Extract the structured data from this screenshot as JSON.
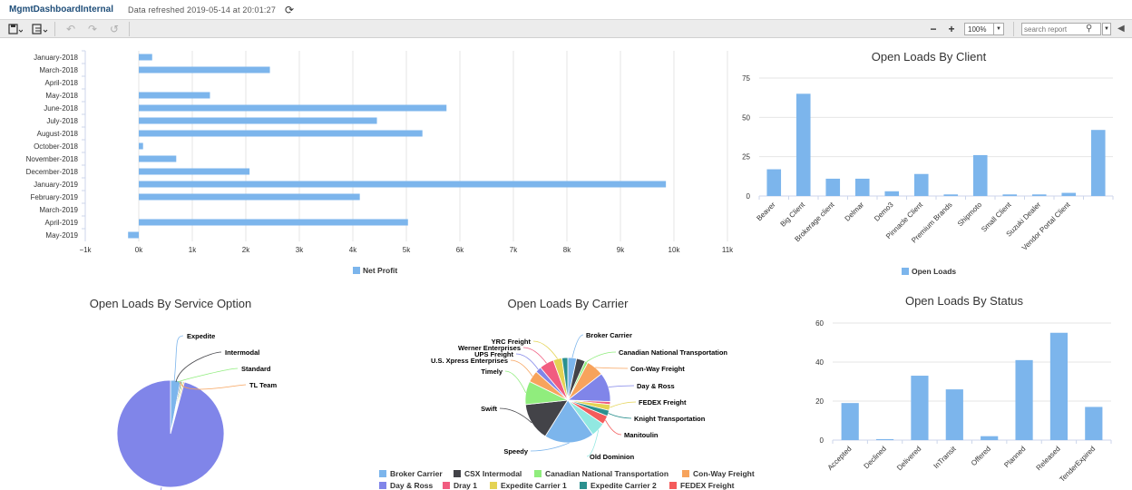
{
  "window": {
    "app_title": "MgmtDashboardInternal",
    "refreshed_text": "Data refreshed 2019-05-14 at 20:01:27"
  },
  "toolbar": {
    "zoom_value": "100%",
    "search_placeholder": "search report",
    "icons": [
      "save-icon",
      "export-icon",
      "undo-icon",
      "redo-icon",
      "refresh-icon",
      "zoom-out-icon",
      "zoom-in-icon",
      "search-icon",
      "collapse-icon"
    ]
  },
  "colors": {
    "bar": "#7cb5ec",
    "pie_main": "#8085e9"
  },
  "charts": {
    "net_profit": {
      "chart_data": {
        "type": "bar",
        "orientation": "horizontal",
        "title": "",
        "categories": [
          "January-2018",
          "March-2018",
          "April-2018",
          "May-2018",
          "June-2018",
          "July-2018",
          "August-2018",
          "October-2018",
          "November-2018",
          "December-2018",
          "January-2019",
          "February-2019",
          "March-2019",
          "April-2019",
          "May-2019"
        ],
        "series": [
          {
            "name": "Net Profit",
            "values": [
              250,
              2450,
              0,
              1330,
              5750,
              4450,
              5300,
              80,
              700,
              2070,
              9850,
              4130,
              0,
              5030,
              -200
            ]
          }
        ],
        "xlim": [
          -1000,
          11000
        ],
        "ticks": [
          "−1k",
          "0k",
          "1k",
          "2k",
          "3k",
          "4k",
          "5k",
          "6k",
          "7k",
          "8k",
          "9k",
          "10k",
          "11k"
        ],
        "legend": "bottom-center",
        "grid": true
      }
    },
    "by_client": {
      "chart_data": {
        "type": "bar",
        "title": "Open Loads By Client",
        "categories": [
          "Beaver",
          "Big Client",
          "Brokerage client",
          "Delmar",
          "Demo3",
          "Pinnacle Client",
          "Premium Brands",
          "Shipmoto",
          "Small Client",
          "Suzuki Dealer",
          "Vendor Portal Client",
          ""
        ],
        "series": [
          {
            "name": "Open Loads",
            "values": [
              17,
              65,
              11,
              11,
              3,
              14,
              1,
              26,
              1,
              1,
              2,
              42
            ]
          }
        ],
        "ylim": [
          0,
          75
        ],
        "ticks": [
          "0",
          "25",
          "50",
          "75"
        ],
        "legend": "bottom-center"
      }
    },
    "by_service": {
      "chart_data": {
        "type": "pie",
        "title": "Open Loads By Service Option",
        "labels": [
          "Expedite",
          "Intermodal",
          "Standard",
          "TL Team",
          ""
        ],
        "values": [
          3,
          0.4,
          0.4,
          0.4,
          95.8
        ]
      }
    },
    "by_carrier": {
      "chart_data": {
        "type": "pie",
        "title": "Open Loads By Carrier",
        "labels": [
          "Broker Carrier",
          "CSX Intermodal",
          "Canadian National Transportation",
          "Con-Way Freight",
          "Day & Ross",
          "",
          "FEDEX Freight",
          "Knight Transportation",
          "Manitoulin",
          "Old Dominion",
          "Speedy",
          "Swift",
          "Timely",
          "U.S. Xpress Enterprises",
          "UPS Freight",
          "Werner Enterprises",
          "YRC Freight",
          ""
        ],
        "values": [
          3,
          3,
          1,
          6,
          10,
          1,
          2,
          2,
          3,
          5,
          17,
          13,
          8,
          4,
          2,
          5,
          3,
          2
        ],
        "legend_row1": [
          "Broker Carrier",
          "CSX Intermodal",
          "Canadian National Transportation",
          "Con-Way Freight"
        ],
        "legend_row2": [
          "Day & Ross",
          "Dray 1",
          "Expedite Carrier 1",
          "Expedite Carrier 2",
          "FEDEX Freight"
        ]
      }
    },
    "by_status": {
      "chart_data": {
        "type": "bar",
        "title": "Open Loads By Status",
        "categories": [
          "Accepted",
          "Declined",
          "Delivered",
          "InTransit",
          "Offered",
          "Planned",
          "Released",
          "TenderExpired"
        ],
        "series": [
          {
            "values": [
              19,
              0.5,
              33,
              26,
              2,
              41,
              55,
              17
            ]
          }
        ],
        "ylim": [
          0,
          60
        ],
        "ticks": [
          "0",
          "20",
          "40",
          "60"
        ]
      }
    }
  }
}
